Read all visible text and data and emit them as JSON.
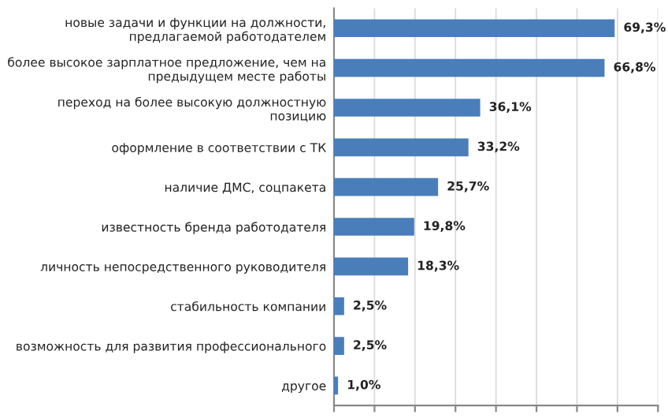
{
  "chart_data": {
    "type": "bar",
    "orientation": "horizontal",
    "categories": [
      "новые задачи и функции на должности,\nпредлагаемой работодателем",
      "более высокое зарплатное предложение, чем на\nпредыдущем месте работы",
      "переход на более высокую должностную\nпозицию",
      "оформление в соответствии с ТК",
      "наличие ДМС, соцпакета",
      "известность бренда работодателя",
      "личность непосредственного руководителя",
      "стабильность компании",
      "возможность для развития профессионального",
      "другое"
    ],
    "values": [
      69.3,
      66.8,
      36.1,
      33.2,
      25.7,
      19.8,
      18.3,
      2.5,
      2.5,
      1.0
    ],
    "value_labels": [
      "69,3%",
      "66,8%",
      "36,1%",
      "33,2%",
      "25,7%",
      "19,8%",
      "18,3%",
      "2,5%",
      "2,5%",
      "1,0%"
    ],
    "color": "#4a7ebb",
    "xlim": [
      0,
      80
    ],
    "xticks": [
      {
        "value": 0,
        "label": null
      },
      {
        "value": 10,
        "label": null
      },
      {
        "value": 20,
        "label": null
      },
      {
        "value": 30,
        "label": null
      },
      {
        "value": 40,
        "label": null
      },
      {
        "value": 50,
        "label": null
      },
      {
        "value": 60,
        "label": null
      },
      {
        "value": 70,
        "label": null
      },
      {
        "value": 80,
        "label": null
      }
    ],
    "grid": "x",
    "tick_labels": "y"
  }
}
